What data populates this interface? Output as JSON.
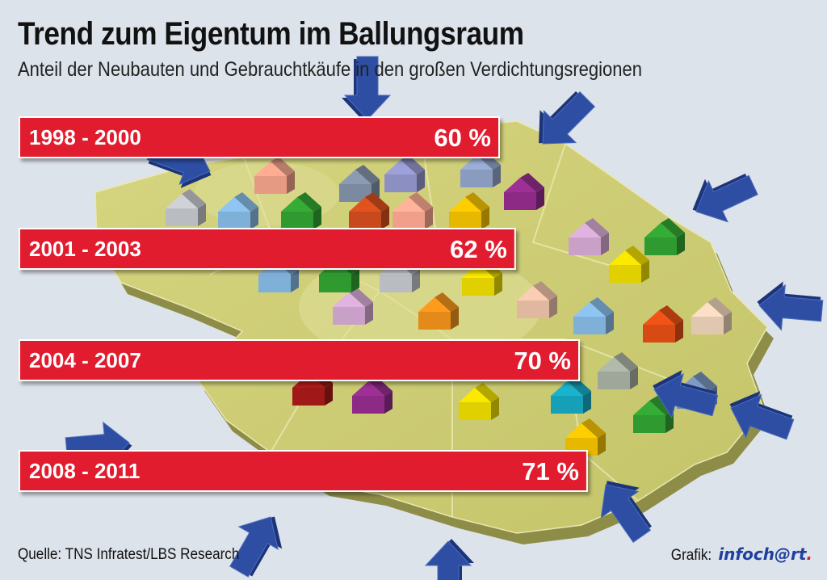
{
  "header": {
    "title": "Trend zum Eigentum im Ballungsraum",
    "subtitle": "Anteil der Neubauten und Gebrauchtkäufe in den großen Verdichtungsregionen"
  },
  "chart_data": {
    "type": "bar",
    "orientation": "horizontal",
    "title": "Trend zum Eigentum im Ballungsraum",
    "subtitle": "Anteil der Neubauten und Gebrauchtkäufe in den großen Verdichtungsregionen",
    "categories": [
      "1998 - 2000",
      "2001 - 2003",
      "2004 - 2007",
      "2008 - 2011"
    ],
    "values": [
      60,
      62,
      70,
      71
    ],
    "value_labels": [
      "60 %",
      "62 %",
      "70 %",
      "71 %"
    ],
    "unit": "%",
    "xlim": [
      0,
      100
    ],
    "grid": false,
    "bar_color": "#e01e2d"
  },
  "footer": {
    "source": "Quelle: TNS Infratest/LBS Research",
    "credit_label": "Grafik:",
    "logo_main": "infoch@rt",
    "logo_dot": "."
  },
  "colors": {
    "background": "#dde3ea",
    "map_fill": "#cfce74",
    "arrow": "#2d4ea3",
    "bar": "#e01e2d"
  }
}
